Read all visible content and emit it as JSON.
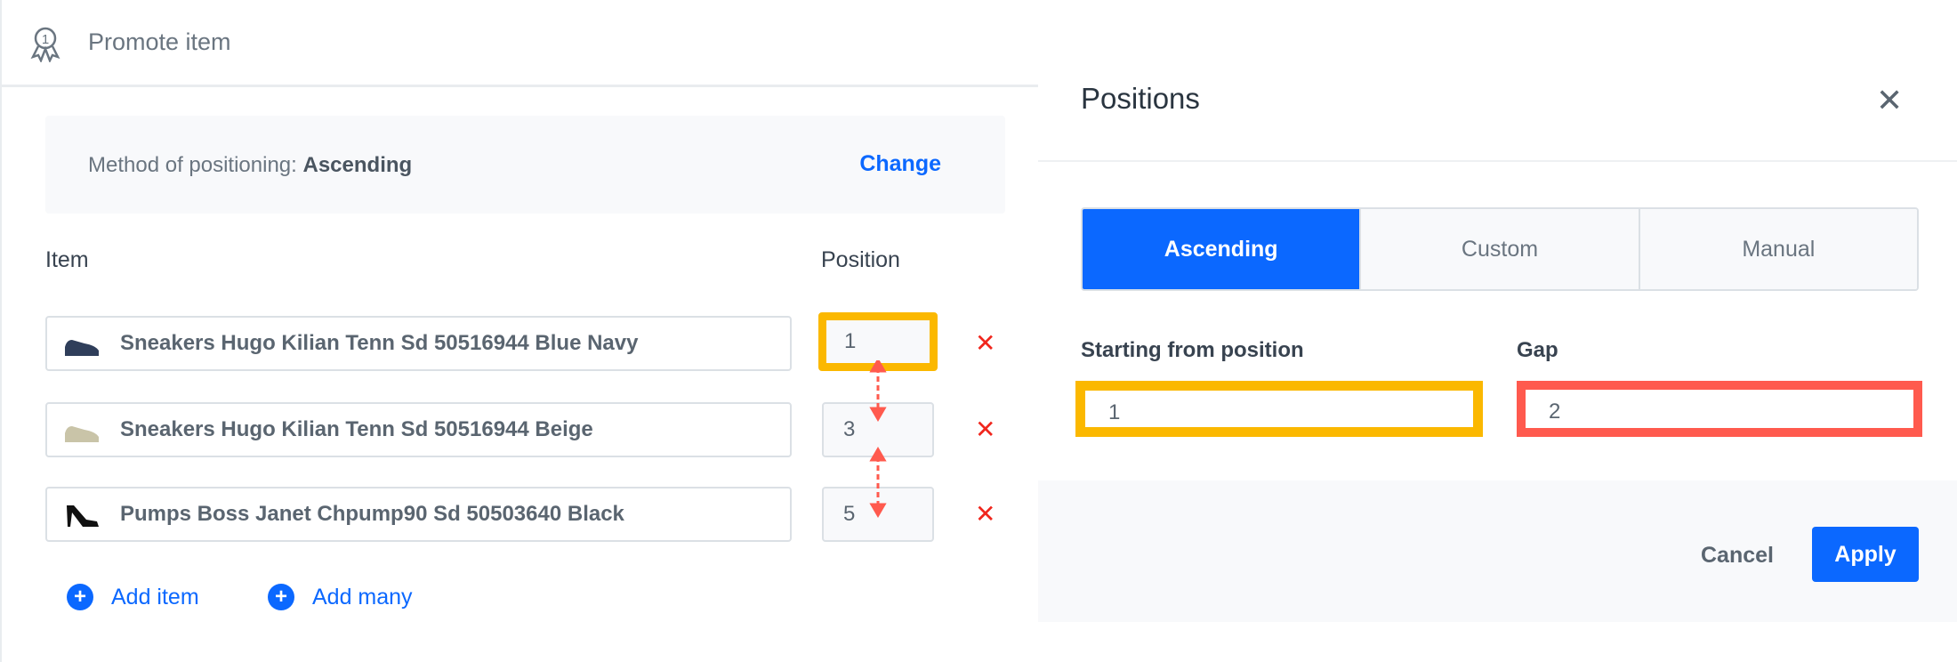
{
  "header": {
    "title": "Promote item",
    "icon": "award-ribbon-icon"
  },
  "method": {
    "label": "Method of positioning:",
    "value": "Ascending",
    "change_label": "Change"
  },
  "columns": {
    "item": "Item",
    "position": "Position"
  },
  "rows": [
    {
      "name": "Sneakers Hugo Kilian Tenn Sd 50516944 Blue Navy",
      "position": "1",
      "thumb_color": "#2f3e5a"
    },
    {
      "name": "Sneakers Hugo Kilian Tenn Sd 50516944 Beige",
      "position": "3",
      "thumb_color": "#c9c4a8"
    },
    {
      "name": "Pumps Boss Janet Chpump90 Sd 50503640 Black",
      "position": "5",
      "thumb_color": "#111111"
    }
  ],
  "actions": {
    "add_item": "Add item",
    "add_many": "Add many"
  },
  "modal": {
    "title": "Positions",
    "tabs": [
      {
        "label": "Ascending",
        "active": true
      },
      {
        "label": "Custom",
        "active": false
      },
      {
        "label": "Manual",
        "active": false
      }
    ],
    "start_label": "Starting from position",
    "start_value": "1",
    "gap_label": "Gap",
    "gap_value": "2",
    "cancel": "Cancel",
    "apply": "Apply"
  },
  "colors": {
    "accent": "#0b68ff",
    "highlight_yellow": "#fbb800",
    "highlight_red": "#ff5a4e",
    "delete": "#f0261d"
  }
}
